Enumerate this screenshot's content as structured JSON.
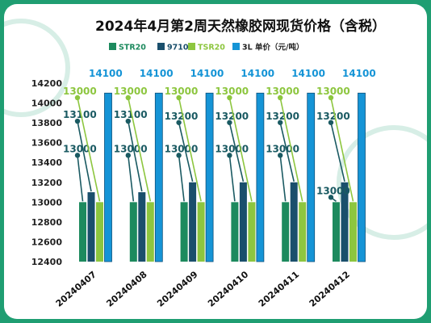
{
  "colors": {
    "frame": "#1f9e72",
    "STR20": "#1d8a5e",
    "9710": "#1a4f6c",
    "TSR20": "#8dc63f",
    "3L": "#1594d6",
    "label_str20": "#1a5a62",
    "label_9710": "#1a5a62",
    "label_tsr20": "#8dc63f",
    "label_3l": "#1594d6",
    "watermark": "天然橡胶网"
  },
  "chart_data": {
    "type": "bar",
    "title": "2024年4月第2周天然橡胶网现货价格（含税）",
    "categories": [
      "20240407",
      "20240408",
      "20240409",
      "20240410",
      "20240411",
      "20240412"
    ],
    "series": [
      {
        "name": "STR20",
        "values": [
          13000,
          13000,
          13000,
          13000,
          13000,
          13000
        ]
      },
      {
        "name": "9710",
        "values": [
          13100,
          13100,
          13200,
          13200,
          13200,
          13200
        ]
      },
      {
        "name": "TSR20",
        "values": [
          13000,
          13000,
          13000,
          13000,
          13000,
          13000
        ]
      },
      {
        "name": "3L",
        "values": [
          14100,
          14100,
          14100,
          14100,
          14100,
          14100
        ]
      }
    ],
    "legend_suffix": "单价（元/吨）",
    "ylim": [
      12400,
      14200
    ],
    "yticks": [
      12400,
      12600,
      12800,
      13000,
      13200,
      13400,
      13600,
      13800,
      14000,
      14200
    ],
    "legend_position": "top",
    "grid": false
  }
}
